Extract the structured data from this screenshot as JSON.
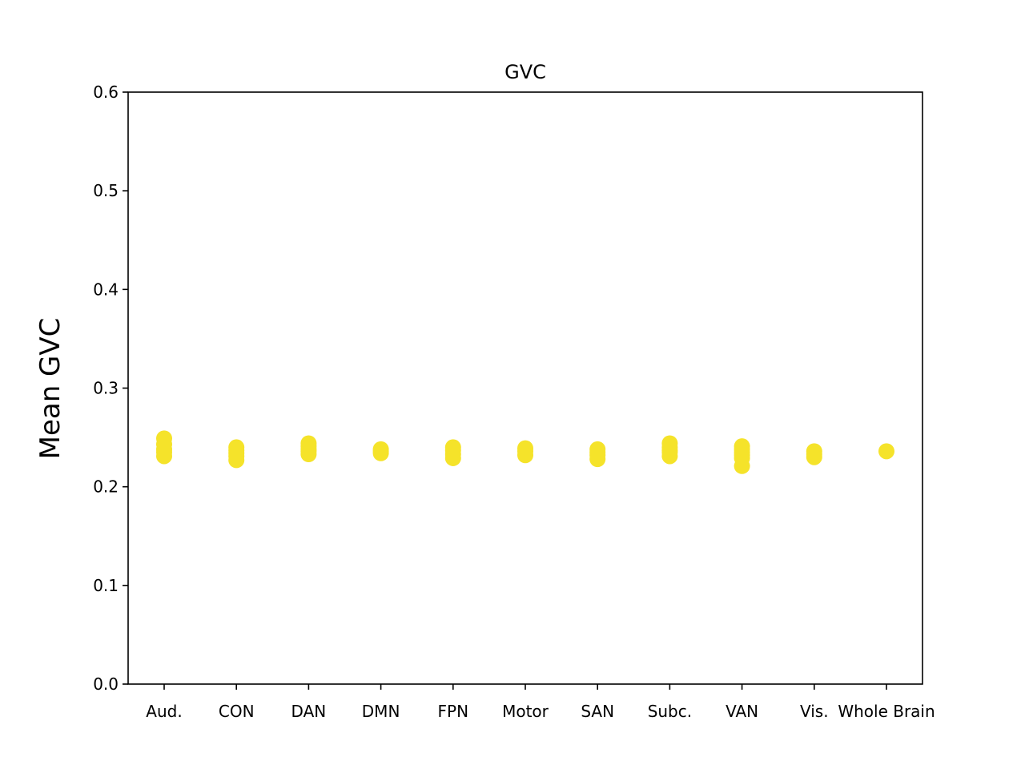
{
  "chart_data": {
    "type": "scatter",
    "title": "GVC",
    "xlabel": "",
    "ylabel": "Mean GVC",
    "ylim": [
      0.0,
      0.6
    ],
    "yticks": [
      "0.0",
      "0.1",
      "0.2",
      "0.3",
      "0.4",
      "0.5",
      "0.6"
    ],
    "categories": [
      "Aud.",
      "CON",
      "DAN",
      "DMN",
      "FPN",
      "Motor",
      "SAN",
      "Subc.",
      "VAN",
      "Vis.",
      "Whole Brain"
    ],
    "points": [
      {
        "category": "Aud.",
        "values": [
          0.249,
          0.243,
          0.238,
          0.235,
          0.231
        ]
      },
      {
        "category": "CON",
        "values": [
          0.24,
          0.237,
          0.234,
          0.231,
          0.227
        ]
      },
      {
        "category": "DAN",
        "values": [
          0.244,
          0.241,
          0.238,
          0.236,
          0.233
        ]
      },
      {
        "category": "DMN",
        "values": [
          0.238,
          0.236,
          0.234
        ]
      },
      {
        "category": "FPN",
        "values": [
          0.24,
          0.237,
          0.233,
          0.229
        ]
      },
      {
        "category": "Motor",
        "values": [
          0.239,
          0.236,
          0.232
        ]
      },
      {
        "category": "SAN",
        "values": [
          0.238,
          0.235,
          0.232,
          0.228
        ]
      },
      {
        "category": "Subc.",
        "values": [
          0.244,
          0.24,
          0.237,
          0.235,
          0.231
        ]
      },
      {
        "category": "VAN",
        "values": [
          0.241,
          0.238,
          0.235,
          0.232,
          0.229,
          0.221
        ]
      },
      {
        "category": "Vis.",
        "values": [
          0.236,
          0.233,
          0.23
        ]
      },
      {
        "category": "Whole Brain",
        "values": [
          0.236
        ]
      }
    ],
    "marker_color": "#f5e32a",
    "grid": false
  }
}
